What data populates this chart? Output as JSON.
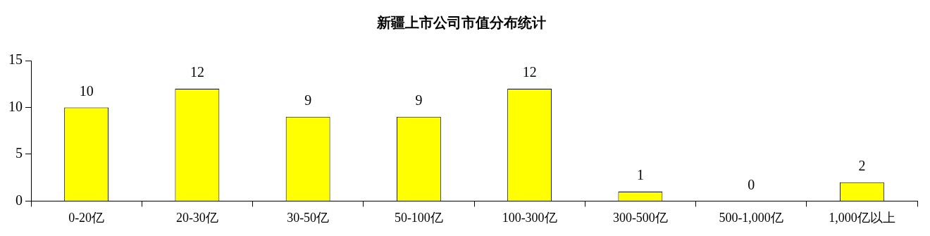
{
  "chart_data": {
    "type": "bar",
    "title": "新疆上市公司市值分布统计",
    "categories": [
      "0-20亿",
      "20-30亿",
      "30-50亿",
      "50-100亿",
      "100-300亿",
      "300-500亿",
      "500-1,000亿",
      "1,000亿以上"
    ],
    "values": [
      10,
      12,
      9,
      9,
      12,
      1,
      0,
      2
    ],
    "color": "#ffff00",
    "ylim": [
      0,
      15
    ],
    "yticks": [
      0,
      5,
      10,
      15
    ],
    "grid": false,
    "legend": false,
    "data_labels": true
  }
}
